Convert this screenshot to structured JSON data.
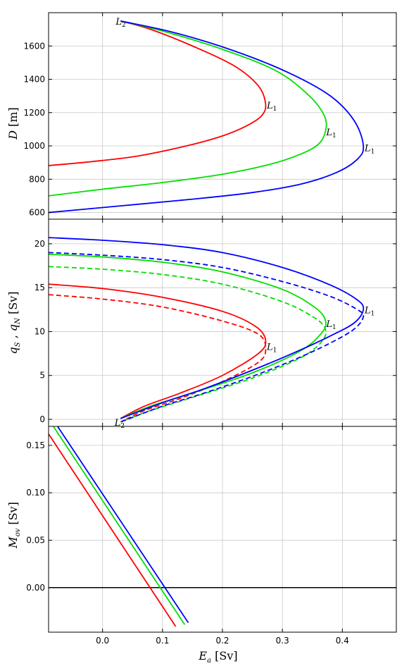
{
  "chart_data": [
    {
      "type": "line",
      "panel": "top",
      "ylabel": "D [m]",
      "ylim": [
        560,
        1800
      ],
      "yticks": [
        "600",
        "800",
        "1000",
        "1200",
        "1400",
        "1600"
      ],
      "xlim": [
        -0.09,
        0.49
      ],
      "grid": true,
      "series": [
        {
          "color": "#ff0000",
          "style": "solid",
          "points": [
            [
              0.03,
              1750
            ],
            [
              0.08,
              1700
            ],
            [
              0.15,
              1600
            ],
            [
              0.22,
              1480
            ],
            [
              0.26,
              1360
            ],
            [
              0.272,
              1250
            ],
            [
              0.265,
              1180
            ],
            [
              0.24,
              1120
            ],
            [
              0.2,
              1060
            ],
            [
              0.14,
              1000
            ],
            [
              0.06,
              940
            ],
            [
              -0.02,
              905
            ],
            [
              -0.09,
              882
            ]
          ]
        },
        {
          "color": "#00e000",
          "style": "solid",
          "points": [
            [
              0.03,
              1750
            ],
            [
              0.1,
              1690
            ],
            [
              0.2,
              1580
            ],
            [
              0.29,
              1450
            ],
            [
              0.345,
              1300
            ],
            [
              0.37,
              1180
            ],
            [
              0.372,
              1090
            ],
            [
              0.36,
              1010
            ],
            [
              0.33,
              950
            ],
            [
              0.28,
              890
            ],
            [
              0.2,
              830
            ],
            [
              0.1,
              780
            ],
            [
              0.0,
              740
            ],
            [
              -0.09,
              700
            ]
          ]
        },
        {
          "color": "#0000ff",
          "style": "solid",
          "points": [
            [
              0.03,
              1750
            ],
            [
              0.12,
              1680
            ],
            [
              0.22,
              1570
            ],
            [
              0.31,
              1440
            ],
            [
              0.38,
              1300
            ],
            [
              0.42,
              1150
            ],
            [
              0.435,
              1000
            ],
            [
              0.425,
              920
            ],
            [
              0.39,
              840
            ],
            [
              0.33,
              770
            ],
            [
              0.25,
              720
            ],
            [
              0.15,
              680
            ],
            [
              0.03,
              640
            ],
            [
              -0.09,
              600
            ]
          ]
        }
      ],
      "annotations": [
        {
          "label": "L",
          "sub": "2",
          "x": 0.022,
          "y": 1750
        },
        {
          "label": "L",
          "sub": "1",
          "x": 0.274,
          "y": 1245
        },
        {
          "label": "L",
          "sub": "1",
          "x": 0.373,
          "y": 1085
        },
        {
          "label": "L",
          "sub": "1",
          "x": 0.437,
          "y": 990
        }
      ]
    },
    {
      "type": "line",
      "panel": "middle",
      "ylabel": "q_S , q_N [Sv]",
      "ylim": [
        -0.8,
        22.8
      ],
      "yticks": [
        "0",
        "5",
        "10",
        "15",
        "20"
      ],
      "xlim": [
        -0.09,
        0.49
      ],
      "grid": true,
      "series": [
        {
          "color": "#ff0000",
          "style": "solid",
          "points": [
            [
              -0.09,
              15.4
            ],
            [
              0.0,
              14.9
            ],
            [
              0.1,
              13.9
            ],
            [
              0.2,
              12.3
            ],
            [
              0.255,
              10.6
            ],
            [
              0.272,
              9.0
            ],
            [
              0.26,
              7.5
            ],
            [
              0.2,
              5.0
            ],
            [
              0.13,
              3.0
            ],
            [
              0.07,
              1.5
            ],
            [
              0.03,
              0.1
            ]
          ]
        },
        {
          "color": "#ff0000",
          "style": "dashed",
          "points": [
            [
              -0.09,
              14.2
            ],
            [
              0.0,
              13.7
            ],
            [
              0.1,
              12.8
            ],
            [
              0.2,
              11.2
            ],
            [
              0.26,
              9.7
            ],
            [
              0.272,
              8.0
            ],
            [
              0.26,
              6.5
            ],
            [
              0.2,
              4.3
            ],
            [
              0.13,
              2.4
            ],
            [
              0.07,
              1.0
            ],
            [
              0.03,
              -0.3
            ]
          ]
        },
        {
          "color": "#00e000",
          "style": "solid",
          "points": [
            [
              -0.09,
              18.8
            ],
            [
              0.0,
              18.5
            ],
            [
              0.1,
              17.9
            ],
            [
              0.2,
              16.8
            ],
            [
              0.3,
              14.8
            ],
            [
              0.355,
              12.7
            ],
            [
              0.372,
              11.2
            ],
            [
              0.365,
              9.8
            ],
            [
              0.33,
              7.8
            ],
            [
              0.25,
              5.3
            ],
            [
              0.15,
              3.0
            ],
            [
              0.08,
              1.5
            ],
            [
              0.03,
              0.1
            ]
          ]
        },
        {
          "color": "#00e000",
          "style": "dashed",
          "points": [
            [
              -0.09,
              17.4
            ],
            [
              0.0,
              17.1
            ],
            [
              0.1,
              16.5
            ],
            [
              0.2,
              15.4
            ],
            [
              0.3,
              13.4
            ],
            [
              0.355,
              11.5
            ],
            [
              0.372,
              10.2
            ],
            [
              0.365,
              8.8
            ],
            [
              0.33,
              7.0
            ],
            [
              0.25,
              4.7
            ],
            [
              0.15,
              2.5
            ],
            [
              0.08,
              1.0
            ],
            [
              0.03,
              -0.3
            ]
          ]
        },
        {
          "color": "#0000ff",
          "style": "solid",
          "points": [
            [
              -0.09,
              20.7
            ],
            [
              0.0,
              20.4
            ],
            [
              0.1,
              19.9
            ],
            [
              0.2,
              19.0
            ],
            [
              0.3,
              17.3
            ],
            [
              0.38,
              15.3
            ],
            [
              0.425,
              13.6
            ],
            [
              0.435,
              12.5
            ],
            [
              0.42,
              11.0
            ],
            [
              0.38,
              9.5
            ],
            [
              0.32,
              7.6
            ],
            [
              0.25,
              5.6
            ],
            [
              0.17,
              3.5
            ],
            [
              0.1,
              1.9
            ],
            [
              0.03,
              0.1
            ]
          ]
        },
        {
          "color": "#0000ff",
          "style": "dashed",
          "points": [
            [
              -0.09,
              19.0
            ],
            [
              0.0,
              18.7
            ],
            [
              0.1,
              18.2
            ],
            [
              0.2,
              17.3
            ],
            [
              0.3,
              15.7
            ],
            [
              0.38,
              14.0
            ],
            [
              0.425,
              12.5
            ],
            [
              0.435,
              11.7
            ],
            [
              0.42,
              10.3
            ],
            [
              0.38,
              8.7
            ],
            [
              0.32,
              6.8
            ],
            [
              0.25,
              4.9
            ],
            [
              0.17,
              3.0
            ],
            [
              0.1,
              1.5
            ],
            [
              0.03,
              -0.3
            ]
          ]
        }
      ],
      "annotations": [
        {
          "label": "L",
          "sub": "2",
          "x": 0.02,
          "y": -0.3
        },
        {
          "label": "L",
          "sub": "1",
          "x": 0.274,
          "y": 8.3
        },
        {
          "label": "L",
          "sub": "1",
          "x": 0.373,
          "y": 10.9
        },
        {
          "label": "L",
          "sub": "1",
          "x": 0.437,
          "y": 12.5
        }
      ]
    },
    {
      "type": "line",
      "panel": "bottom",
      "ylabel": "M_ov [Sv]",
      "xlabel": "E_a [Sv]",
      "ylim": [
        -0.047,
        0.17
      ],
      "yticks": [
        "0.00",
        "0.05",
        "0.10",
        "0.15"
      ],
      "xlim": [
        -0.09,
        0.49
      ],
      "xticks": [
        "0.0",
        "0.1",
        "0.2",
        "0.3",
        "0.4"
      ],
      "grid": true,
      "hline_y": 0.0,
      "series": [
        {
          "color": "#ff0000",
          "style": "solid",
          "points": [
            [
              -0.09,
              0.162
            ],
            [
              0.122,
              -0.041
            ]
          ]
        },
        {
          "color": "#00e000",
          "style": "solid",
          "points": [
            [
              -0.082,
              0.17
            ],
            [
              0.137,
              -0.039
            ]
          ]
        },
        {
          "color": "#0000ff",
          "style": "solid",
          "points": [
            [
              -0.075,
              0.17
            ],
            [
              0.143,
              -0.037
            ]
          ]
        }
      ]
    }
  ]
}
